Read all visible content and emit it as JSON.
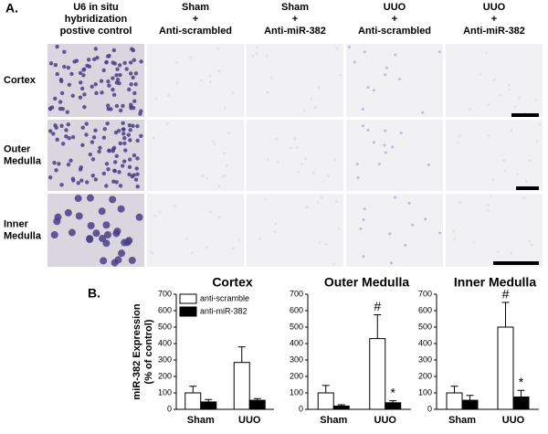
{
  "panel_a": {
    "label": "A.",
    "columns": [
      [
        "U6 in situ",
        "hybridization",
        "postive control"
      ],
      [
        "Sham",
        "+",
        "Anti-scrambled"
      ],
      [
        "Sham",
        "+",
        "Anti-miR-382"
      ],
      [
        "UUO",
        "+",
        "Anti-scrambled"
      ],
      [
        "UUO",
        "+",
        "Anti-miR-382"
      ]
    ],
    "rows": [
      [
        "Cortex"
      ],
      [
        "Outer",
        "Medulla"
      ],
      [
        "Inner",
        "Medulla"
      ]
    ]
  },
  "panel_b": {
    "label": "B."
  },
  "chart_data": [
    {
      "type": "bar",
      "title": "Cortex",
      "ylabel": [
        "miR-382 Expression",
        "(% of control)"
      ],
      "categories": [
        "Sham",
        "UUO"
      ],
      "series": [
        {
          "name": "anti-scramble",
          "color": "#ffffff",
          "values": [
            100,
            285
          ],
          "errors": [
            40,
            95
          ]
        },
        {
          "name": "anti-miR-382",
          "color": "#000000",
          "values": [
            45,
            55
          ],
          "errors": [
            15,
            10
          ]
        }
      ],
      "ylim": [
        0,
        700
      ],
      "yticks": [
        0,
        100,
        200,
        300,
        400,
        500,
        600,
        700
      ],
      "legend": "upper-left"
    },
    {
      "type": "bar",
      "title": "Outer Medulla",
      "categories": [
        "Sham",
        "UUO"
      ],
      "series": [
        {
          "color": "#ffffff",
          "values": [
            100,
            430
          ],
          "errors": [
            45,
            145
          ],
          "annotations": [
            null,
            "#"
          ]
        },
        {
          "color": "#000000",
          "values": [
            20,
            40
          ],
          "errors": [
            8,
            12
          ],
          "annotations": [
            null,
            "*"
          ]
        }
      ],
      "ylim": [
        0,
        700
      ],
      "yticks": [
        0,
        100,
        200,
        300,
        400,
        500,
        600,
        700
      ]
    },
    {
      "type": "bar",
      "title": "Inner Medulla",
      "categories": [
        "Sham",
        "UUO"
      ],
      "series": [
        {
          "color": "#ffffff",
          "values": [
            100,
            500
          ],
          "errors": [
            40,
            150
          ],
          "annotations": [
            null,
            "#"
          ]
        },
        {
          "color": "#000000",
          "values": [
            55,
            75
          ],
          "errors": [
            30,
            40
          ],
          "annotations": [
            null,
            "*"
          ]
        }
      ],
      "ylim": [
        0,
        700
      ],
      "yticks": [
        0,
        100,
        200,
        300,
        400,
        500,
        600,
        700
      ]
    }
  ]
}
